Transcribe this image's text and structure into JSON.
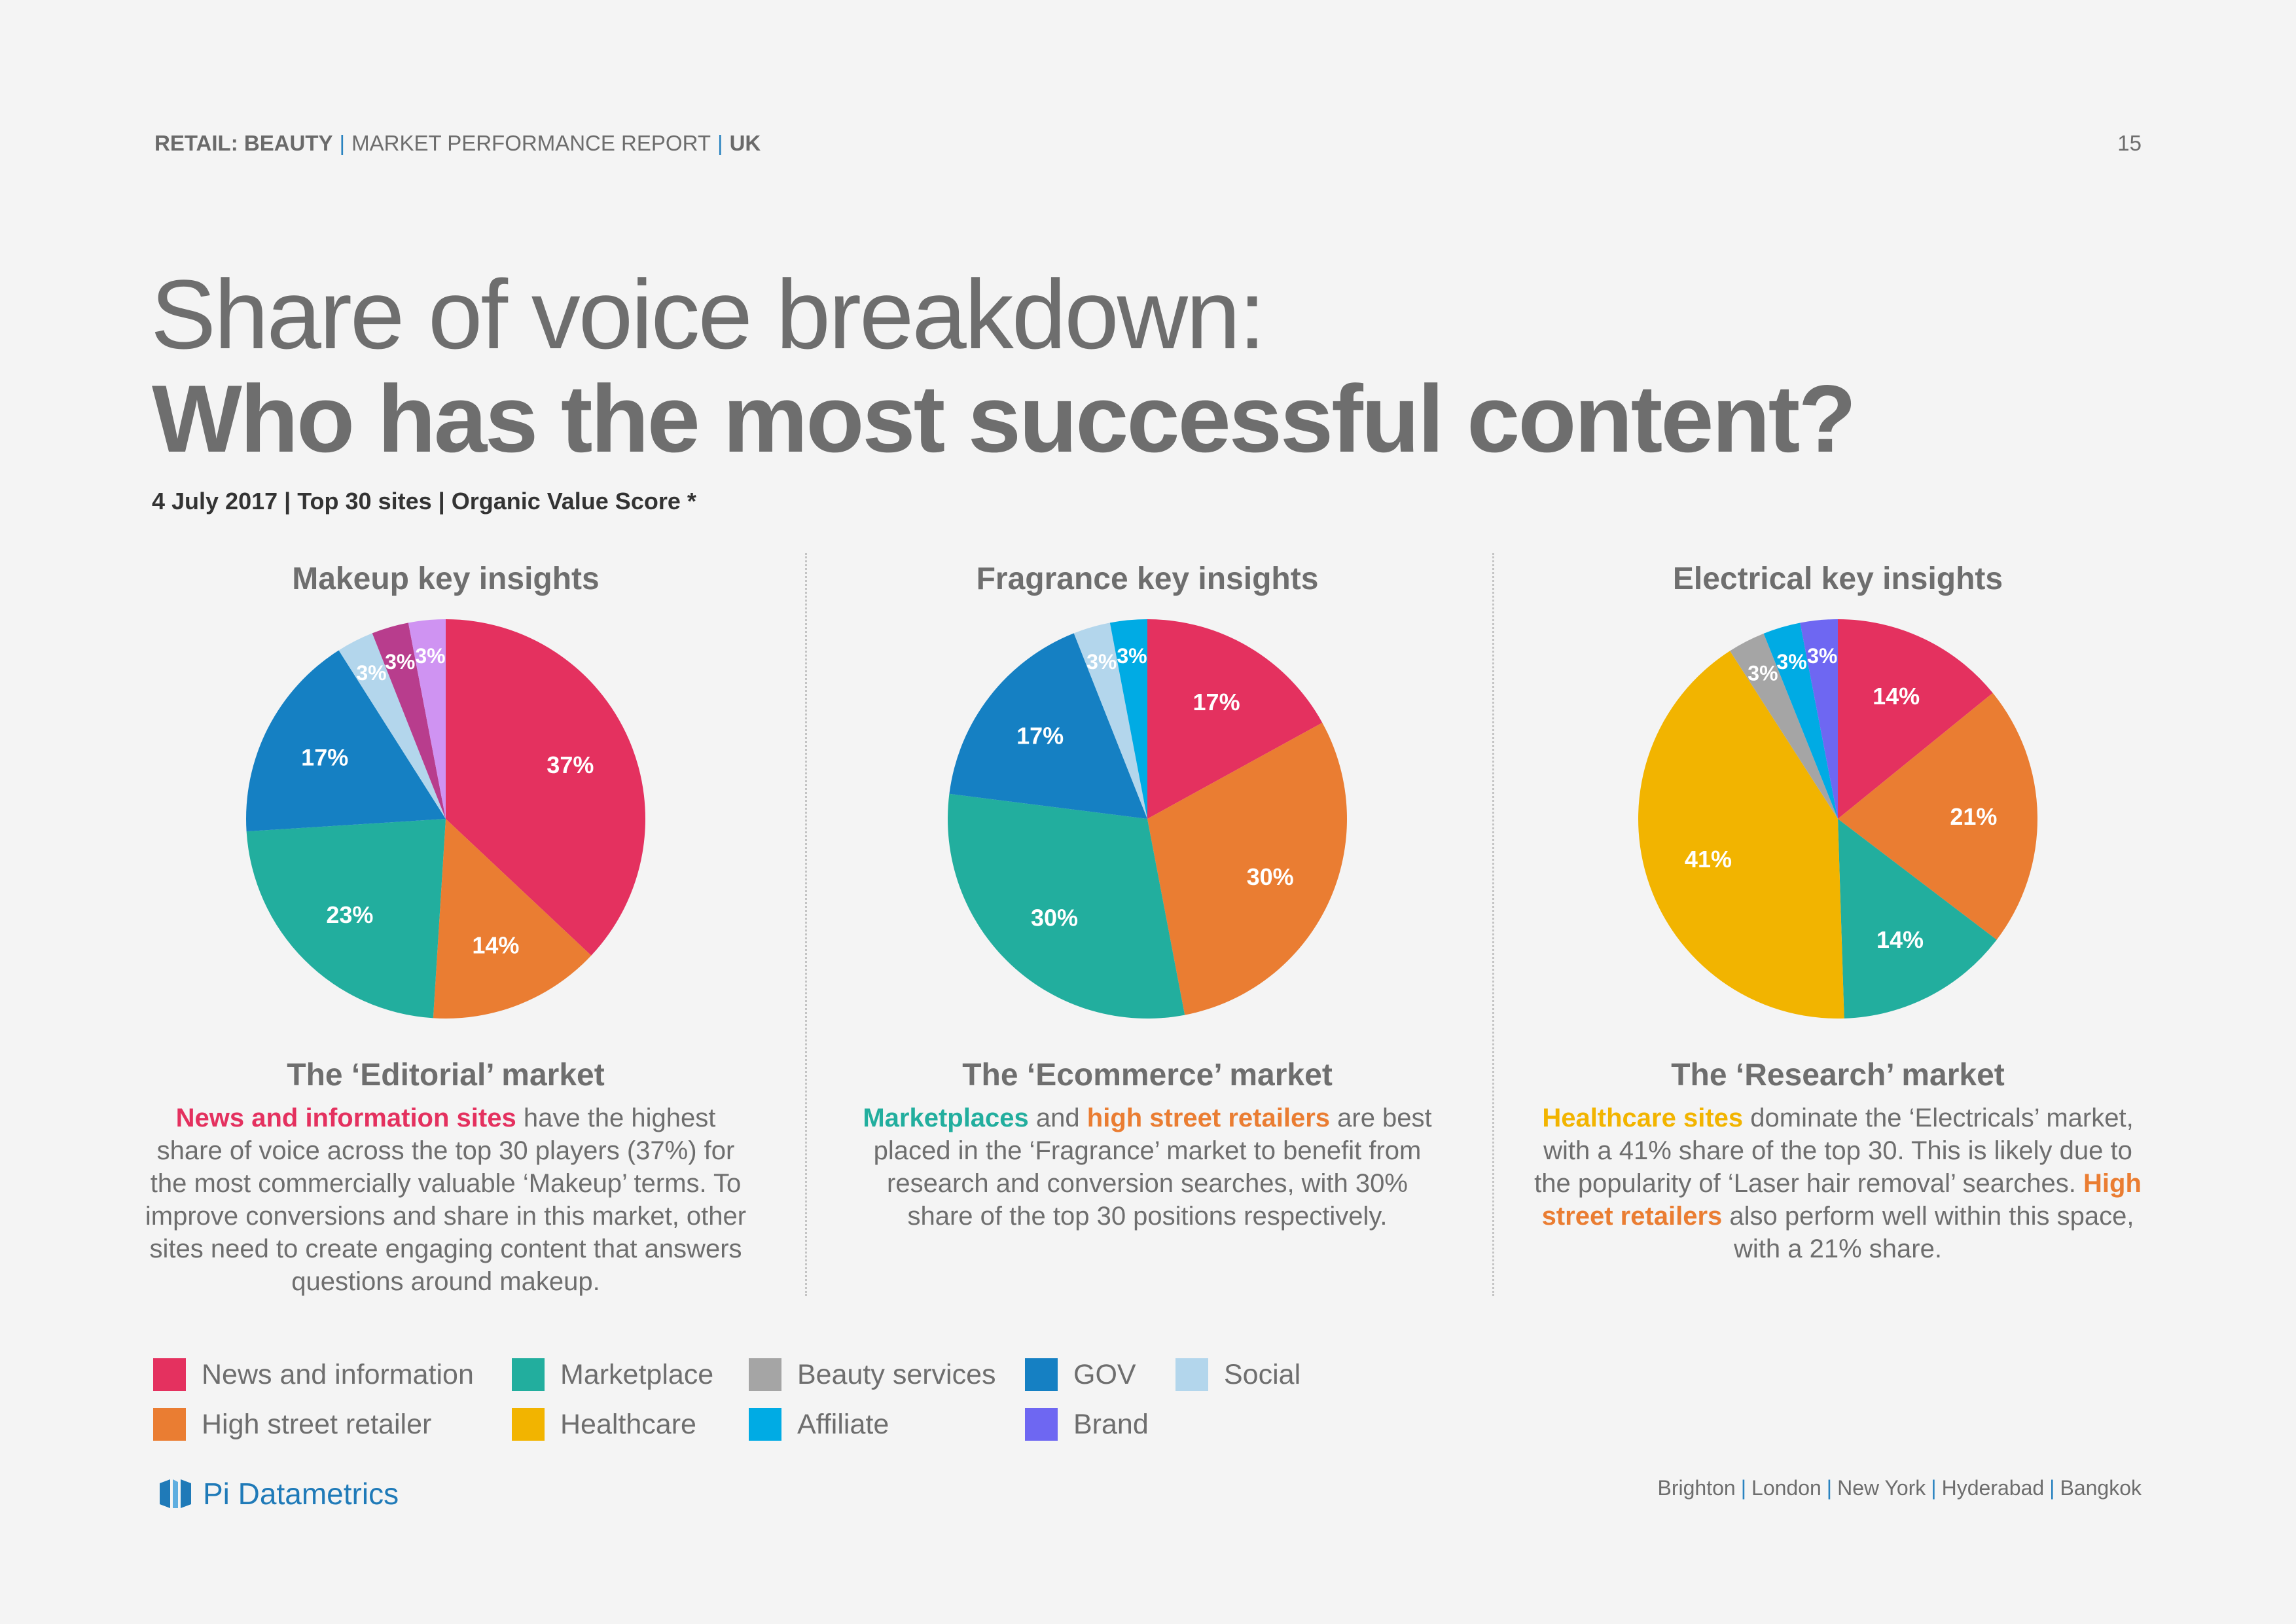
{
  "header": {
    "sector": "RETAIL: BEAUTY",
    "report": "MARKET PERFORMANCE REPORT",
    "region": "UK",
    "page_number": "15"
  },
  "title": {
    "line1": "Share of voice breakdown:",
    "line2": "Who has the most successful content?",
    "subtitle": "4 July 2017 | Top 30 sites | Organic Value Score *"
  },
  "colors": {
    "news": "#e4315f",
    "highstreet": "#ea7d32",
    "marketplace": "#22ae9e",
    "healthcare": "#f2b400",
    "beauty": "#a5a5a5",
    "affiliate": "#00abe4",
    "gov": "#1580c3",
    "brand": "#6e67f2",
    "social": "#b3d6ec",
    "purple1": "#b83d8d",
    "purple2": "#cf93f2"
  },
  "chart_data": [
    {
      "type": "pie",
      "title": "Makeup key insights",
      "slices": [
        {
          "value": 37,
          "label": "37%",
          "color": "#e4315f"
        },
        {
          "value": 14,
          "label": "14%",
          "color": "#ea7d32"
        },
        {
          "value": 23,
          "label": "23%",
          "color": "#22ae9e"
        },
        {
          "value": 17,
          "label": "17%",
          "color": "#1580c3"
        },
        {
          "value": 3,
          "label": "3%",
          "color": "#b3d6ec"
        },
        {
          "value": 3,
          "label": "3%",
          "color": "#b83d8d"
        },
        {
          "value": 3,
          "label": "3%",
          "color": "#cf93f2"
        }
      ]
    },
    {
      "type": "pie",
      "title": "Fragrance key insights",
      "slices": [
        {
          "value": 17,
          "label": "17%",
          "color": "#e4315f"
        },
        {
          "value": 30,
          "label": "30%",
          "color": "#ea7d32"
        },
        {
          "value": 30,
          "label": "30%",
          "color": "#22ae9e"
        },
        {
          "value": 17,
          "label": "17%",
          "color": "#1580c3"
        },
        {
          "value": 3,
          "label": "3%",
          "color": "#b3d6ec"
        },
        {
          "value": 3,
          "label": "3%",
          "color": "#00abe4"
        }
      ]
    },
    {
      "type": "pie",
      "title": "Electrical key insights",
      "slices": [
        {
          "value": 14,
          "label": "14%",
          "color": "#e4315f"
        },
        {
          "value": 21,
          "label": "21%",
          "color": "#ea7d32"
        },
        {
          "value": 14,
          "label": "14%",
          "color": "#22ae9e"
        },
        {
          "value": 41,
          "label": "41%",
          "color": "#f2b400"
        },
        {
          "value": 3,
          "label": "3%",
          "color": "#a5a5a5"
        },
        {
          "value": 3,
          "label": "3%",
          "color": "#00abe4"
        },
        {
          "value": 3,
          "label": "3%",
          "color": "#6e67f2"
        }
      ]
    }
  ],
  "panels": [
    {
      "market_title": "The ‘Editorial’ market",
      "desc_hl1": "News and information sites",
      "desc_rest": " have the highest share of voice across the top 30 players (37%) for the most commercially valuable ‘Makeup’ terms. To improve conversions and share in this market, other sites need to create engaging content that answers questions around makeup."
    },
    {
      "market_title": "The ‘Ecommerce’ market",
      "desc_hl1": "Marketplaces",
      "desc_mid": " and ",
      "desc_hl2": "high street retailers",
      "desc_rest": " are best placed in the ‘Fragrance’ market to benefit from research and conversion searches, with 30% share of the top 30 positions respectively."
    },
    {
      "market_title": "The ‘Research’ market",
      "desc_hl1": "Healthcare sites",
      "desc_mid": " dominate the ‘Electricals’ market, with a 41% share of the top 30. This is likely due to the popularity of ‘Laser hair removal’ searches. ",
      "desc_hl2": "High street retailers",
      "desc_rest": " also perform well within this space, with a 21% share."
    }
  ],
  "legend": [
    {
      "label": "News and information",
      "color": "#e4315f"
    },
    {
      "label": "High street retailer",
      "color": "#ea7d32"
    },
    {
      "label": "Marketplace",
      "color": "#22ae9e"
    },
    {
      "label": "Healthcare",
      "color": "#f2b400"
    },
    {
      "label": "Beauty services",
      "color": "#a5a5a5"
    },
    {
      "label": "Affiliate",
      "color": "#00abe4"
    },
    {
      "label": "GOV",
      "color": "#1580c3"
    },
    {
      "label": "Brand",
      "color": "#6e67f2"
    },
    {
      "label": "Social",
      "color": "#b3d6ec"
    }
  ],
  "footer": {
    "logo_text": "Pi Datametrics",
    "cities": [
      "Brighton",
      "London",
      "New York",
      "Hyderabad",
      "Bangkok"
    ]
  }
}
